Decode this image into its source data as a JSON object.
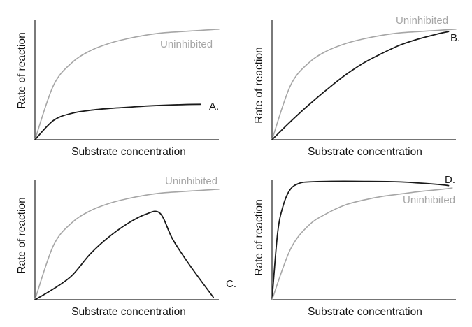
{
  "colors": {
    "uninhibited": "#a6a6a6",
    "inhibited": "#1a1a1a",
    "axis": "#222222"
  },
  "chart_data": [
    {
      "type": "line",
      "xlabel": "Substrate concentration",
      "ylabel": "Rate of reaction",
      "xlim": [
        0,
        1
      ],
      "ylim": [
        0,
        1
      ],
      "grid": false,
      "series": [
        {
          "name": "Uninhibited",
          "x": [
            0,
            0.1,
            0.2,
            0.3,
            0.4,
            0.5,
            0.6,
            0.7,
            0.8,
            0.9,
            1.0
          ],
          "values": [
            0,
            0.45,
            0.64,
            0.74,
            0.8,
            0.84,
            0.87,
            0.89,
            0.9,
            0.91,
            0.92
          ]
        },
        {
          "name": "A.",
          "x": [
            0,
            0.1,
            0.2,
            0.3,
            0.4,
            0.5,
            0.6,
            0.7,
            0.8,
            0.9
          ],
          "values": [
            0,
            0.16,
            0.22,
            0.245,
            0.26,
            0.27,
            0.28,
            0.287,
            0.292,
            0.295
          ]
        }
      ]
    },
    {
      "type": "line",
      "xlabel": "Substrate concentration",
      "ylabel": "Rate of reaction",
      "xlim": [
        0,
        1
      ],
      "ylim": [
        0,
        1
      ],
      "grid": false,
      "series": [
        {
          "name": "Uninhibited",
          "x": [
            0,
            0.1,
            0.2,
            0.3,
            0.4,
            0.5,
            0.6,
            0.7,
            0.8,
            0.9,
            1.0
          ],
          "values": [
            0,
            0.45,
            0.64,
            0.74,
            0.8,
            0.84,
            0.87,
            0.89,
            0.9,
            0.91,
            0.92
          ]
        },
        {
          "name": "B.",
          "x": [
            0,
            0.1,
            0.2,
            0.3,
            0.4,
            0.5,
            0.6,
            0.7,
            0.8,
            0.9,
            0.96
          ],
          "values": [
            0,
            0.15,
            0.29,
            0.42,
            0.54,
            0.64,
            0.72,
            0.79,
            0.84,
            0.88,
            0.9
          ]
        }
      ]
    },
    {
      "type": "line",
      "xlabel": "Substrate concentration",
      "ylabel": "Rate of reaction",
      "xlim": [
        0,
        1
      ],
      "ylim": [
        0,
        1
      ],
      "grid": false,
      "series": [
        {
          "name": "Uninhibited",
          "x": [
            0,
            0.1,
            0.2,
            0.3,
            0.4,
            0.5,
            0.6,
            0.7,
            0.8,
            0.9,
            1.0
          ],
          "values": [
            0,
            0.45,
            0.64,
            0.74,
            0.8,
            0.84,
            0.87,
            0.89,
            0.9,
            0.91,
            0.92
          ]
        },
        {
          "name": "C.",
          "x": [
            0,
            0.1,
            0.2,
            0.3,
            0.4,
            0.5,
            0.6,
            0.68,
            0.75,
            0.85,
            0.97
          ],
          "values": [
            0,
            0.09,
            0.2,
            0.38,
            0.52,
            0.63,
            0.71,
            0.72,
            0.5,
            0.27,
            0.02
          ]
        }
      ]
    },
    {
      "type": "line",
      "xlabel": "Substrate concentration",
      "ylabel": "Rate of reaction",
      "xlim": [
        0,
        1
      ],
      "ylim": [
        0,
        1
      ],
      "grid": false,
      "series": [
        {
          "name": "D.",
          "x": [
            0,
            0.03,
            0.06,
            0.1,
            0.15,
            0.2,
            0.3,
            0.5,
            0.7,
            0.9,
            0.96
          ],
          "values": [
            0,
            0.55,
            0.78,
            0.92,
            0.97,
            0.98,
            0.985,
            0.985,
            0.98,
            0.96,
            0.95
          ]
        },
        {
          "name": "Uninhibited",
          "x": [
            0,
            0.1,
            0.2,
            0.3,
            0.4,
            0.5,
            0.6,
            0.7,
            0.8,
            0.9,
            0.98
          ],
          "values": [
            0,
            0.42,
            0.62,
            0.72,
            0.79,
            0.83,
            0.86,
            0.88,
            0.9,
            0.915,
            0.93
          ]
        }
      ]
    }
  ]
}
